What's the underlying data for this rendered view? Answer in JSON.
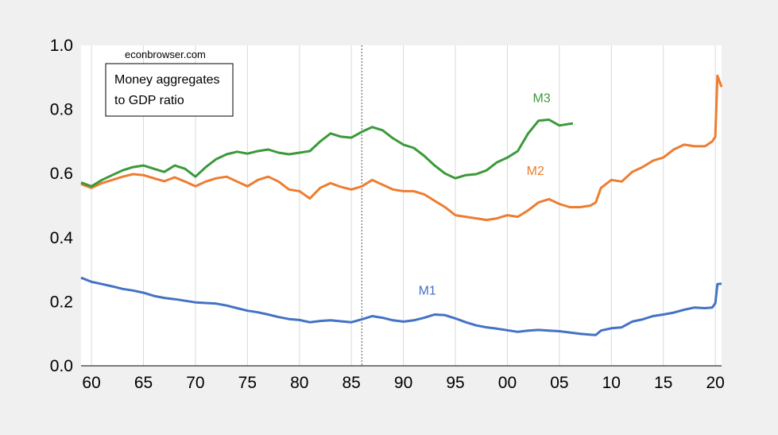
{
  "chart_data": {
    "type": "line",
    "title": "",
    "xlabel": "",
    "ylabel": "",
    "xlim": [
      1959,
      2020.6
    ],
    "ylim": [
      0,
      1.0
    ],
    "y_ticks": [
      0.0,
      0.2,
      0.4,
      0.6,
      0.8,
      1.0
    ],
    "y_tick_labels": [
      "0.0",
      "0.2",
      "0.4",
      "0.6",
      "0.8",
      "1.0"
    ],
    "x_ticks": [
      1960,
      1965,
      1970,
      1975,
      1980,
      1985,
      1990,
      1995,
      2000,
      2005,
      2010,
      2015,
      2020
    ],
    "x_tick_labels": [
      "60",
      "65",
      "70",
      "75",
      "80",
      "85",
      "90",
      "95",
      "00",
      "05",
      "10",
      "15",
      "20"
    ],
    "grid": "vertical",
    "vline_x": 1986,
    "source_note": "econbrowser.com",
    "box_lines": [
      "Money aggregates",
      "to GDP ratio"
    ],
    "series": [
      {
        "name": "M1",
        "color": "#4472c4",
        "points": [
          [
            1959,
            0.275
          ],
          [
            1960,
            0.262
          ],
          [
            1961,
            0.255
          ],
          [
            1962,
            0.248
          ],
          [
            1963,
            0.24
          ],
          [
            1964,
            0.235
          ],
          [
            1965,
            0.228
          ],
          [
            1966,
            0.218
          ],
          [
            1967,
            0.212
          ],
          [
            1968,
            0.208
          ],
          [
            1969,
            0.203
          ],
          [
            1970,
            0.198
          ],
          [
            1971,
            0.196
          ],
          [
            1972,
            0.194
          ],
          [
            1973,
            0.188
          ],
          [
            1974,
            0.18
          ],
          [
            1975,
            0.172
          ],
          [
            1976,
            0.167
          ],
          [
            1977,
            0.16
          ],
          [
            1978,
            0.152
          ],
          [
            1979,
            0.146
          ],
          [
            1980,
            0.143
          ],
          [
            1981,
            0.136
          ],
          [
            1982,
            0.14
          ],
          [
            1983,
            0.142
          ],
          [
            1984,
            0.139
          ],
          [
            1985,
            0.136
          ],
          [
            1986,
            0.145
          ],
          [
            1987,
            0.155
          ],
          [
            1988,
            0.15
          ],
          [
            1989,
            0.142
          ],
          [
            1990,
            0.138
          ],
          [
            1991,
            0.142
          ],
          [
            1992,
            0.15
          ],
          [
            1993,
            0.16
          ],
          [
            1994,
            0.158
          ],
          [
            1995,
            0.148
          ],
          [
            1996,
            0.136
          ],
          [
            1997,
            0.126
          ],
          [
            1998,
            0.12
          ],
          [
            1999,
            0.116
          ],
          [
            2000,
            0.111
          ],
          [
            2001,
            0.106
          ],
          [
            2002,
            0.11
          ],
          [
            2003,
            0.112
          ],
          [
            2004,
            0.11
          ],
          [
            2005,
            0.108
          ],
          [
            2006,
            0.104
          ],
          [
            2007,
            0.1
          ],
          [
            2008,
            0.097
          ],
          [
            2008.5,
            0.096
          ],
          [
            2009,
            0.11
          ],
          [
            2010,
            0.117
          ],
          [
            2011,
            0.12
          ],
          [
            2012,
            0.138
          ],
          [
            2013,
            0.145
          ],
          [
            2014,
            0.155
          ],
          [
            2015,
            0.16
          ],
          [
            2016,
            0.166
          ],
          [
            2017,
            0.175
          ],
          [
            2018,
            0.182
          ],
          [
            2019,
            0.18
          ],
          [
            2019.7,
            0.182
          ],
          [
            2020.0,
            0.195
          ],
          [
            2020.2,
            0.255
          ],
          [
            2020.6,
            0.256
          ]
        ]
      },
      {
        "name": "M2",
        "color": "#ed7d31",
        "points": [
          [
            1959,
            0.567
          ],
          [
            1960,
            0.555
          ],
          [
            1961,
            0.57
          ],
          [
            1962,
            0.58
          ],
          [
            1963,
            0.59
          ],
          [
            1964,
            0.598
          ],
          [
            1965,
            0.595
          ],
          [
            1966,
            0.585
          ],
          [
            1967,
            0.576
          ],
          [
            1968,
            0.588
          ],
          [
            1969,
            0.575
          ],
          [
            1970,
            0.56
          ],
          [
            1971,
            0.575
          ],
          [
            1972,
            0.585
          ],
          [
            1973,
            0.59
          ],
          [
            1974,
            0.575
          ],
          [
            1975,
            0.56
          ],
          [
            1976,
            0.58
          ],
          [
            1977,
            0.59
          ],
          [
            1978,
            0.575
          ],
          [
            1979,
            0.55
          ],
          [
            1980,
            0.545
          ],
          [
            1981,
            0.522
          ],
          [
            1982,
            0.555
          ],
          [
            1983,
            0.57
          ],
          [
            1984,
            0.558
          ],
          [
            1985,
            0.55
          ],
          [
            1986,
            0.56
          ],
          [
            1987,
            0.58
          ],
          [
            1988,
            0.565
          ],
          [
            1989,
            0.55
          ],
          [
            1990,
            0.545
          ],
          [
            1991,
            0.545
          ],
          [
            1992,
            0.535
          ],
          [
            1993,
            0.515
          ],
          [
            1994,
            0.495
          ],
          [
            1995,
            0.47
          ],
          [
            1996,
            0.465
          ],
          [
            1997,
            0.46
          ],
          [
            1998,
            0.455
          ],
          [
            1999,
            0.46
          ],
          [
            2000,
            0.47
          ],
          [
            2001,
            0.465
          ],
          [
            2002,
            0.485
          ],
          [
            2003,
            0.51
          ],
          [
            2004,
            0.52
          ],
          [
            2005,
            0.505
          ],
          [
            2006,
            0.495
          ],
          [
            2007,
            0.495
          ],
          [
            2008,
            0.5
          ],
          [
            2008.5,
            0.51
          ],
          [
            2009,
            0.555
          ],
          [
            2010,
            0.58
          ],
          [
            2011,
            0.575
          ],
          [
            2012,
            0.605
          ],
          [
            2013,
            0.62
          ],
          [
            2014,
            0.64
          ],
          [
            2015,
            0.65
          ],
          [
            2016,
            0.675
          ],
          [
            2017,
            0.69
          ],
          [
            2018,
            0.685
          ],
          [
            2019,
            0.685
          ],
          [
            2019.7,
            0.7
          ],
          [
            2020.0,
            0.715
          ],
          [
            2020.2,
            0.905
          ],
          [
            2020.6,
            0.87
          ]
        ]
      },
      {
        "name": "M3",
        "color": "#3a9a3a",
        "points": [
          [
            1959,
            0.572
          ],
          [
            1960,
            0.56
          ],
          [
            1961,
            0.58
          ],
          [
            1962,
            0.595
          ],
          [
            1963,
            0.61
          ],
          [
            1964,
            0.62
          ],
          [
            1965,
            0.625
          ],
          [
            1966,
            0.615
          ],
          [
            1967,
            0.605
          ],
          [
            1968,
            0.625
          ],
          [
            1969,
            0.615
          ],
          [
            1970,
            0.59
          ],
          [
            1971,
            0.62
          ],
          [
            1972,
            0.645
          ],
          [
            1973,
            0.66
          ],
          [
            1974,
            0.668
          ],
          [
            1975,
            0.662
          ],
          [
            1976,
            0.67
          ],
          [
            1977,
            0.675
          ],
          [
            1978,
            0.665
          ],
          [
            1979,
            0.66
          ],
          [
            1980,
            0.665
          ],
          [
            1981,
            0.67
          ],
          [
            1982,
            0.7
          ],
          [
            1983,
            0.725
          ],
          [
            1984,
            0.715
          ],
          [
            1985,
            0.712
          ],
          [
            1986,
            0.73
          ],
          [
            1987,
            0.745
          ],
          [
            1988,
            0.735
          ],
          [
            1989,
            0.71
          ],
          [
            1990,
            0.69
          ],
          [
            1991,
            0.68
          ],
          [
            1992,
            0.655
          ],
          [
            1993,
            0.625
          ],
          [
            1994,
            0.6
          ],
          [
            1995,
            0.585
          ],
          [
            1996,
            0.595
          ],
          [
            1997,
            0.598
          ],
          [
            1998,
            0.61
          ],
          [
            1999,
            0.635
          ],
          [
            2000,
            0.65
          ],
          [
            2001,
            0.67
          ],
          [
            2002,
            0.725
          ],
          [
            2003,
            0.765
          ],
          [
            2004,
            0.768
          ],
          [
            2005,
            0.75
          ],
          [
            2006,
            0.755
          ],
          [
            2006.3,
            0.756
          ]
        ]
      }
    ],
    "series_labels": [
      {
        "text": "M1",
        "x": 1992.3,
        "y": 0.222
      },
      {
        "text": "M2",
        "x": 2002.7,
        "y": 0.595
      },
      {
        "text": "M3",
        "x": 2003.3,
        "y": 0.822
      }
    ]
  }
}
